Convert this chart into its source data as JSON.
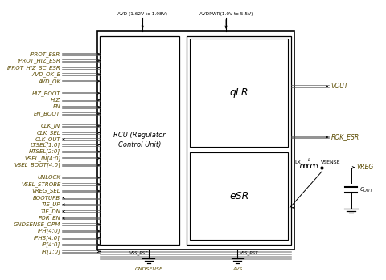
{
  "bg_color": "#ffffff",
  "signal_color": "#404040",
  "box_color": "#000000",
  "text_color": "#5a4a00",
  "avd_label": "AVD (1.62V to 1.98V)",
  "avdpwr_label": "AVDPWR(1.0V to 5.5V)",
  "qlr_label": "qLR",
  "esr_label": "eSR",
  "rcu_label": "RCU (Regulator\nControl Unit)",
  "lx_label": "LX",
  "l_label": "L",
  "vsense_label": "VSENSE",
  "vreg_label": "VREG",
  "vout_label": "VOUT",
  "rok_label": "ROK_ESR",
  "cout_label": "C_{OUT}",
  "vss_pst_left": "VSS_PST",
  "vss_pst_right": "VSS_PST",
  "gndsense_label": "GNDSENSE",
  "avs_label": "AVS",
  "left_signals_in": [
    "IPROT_ESR",
    "IPROT_HIZ_ESR",
    "IPROT_HIZ_SC_ESR",
    "AVD_OK_B",
    "AVD_OK",
    "",
    "HIZ_BOOT",
    "HIZ",
    "EN",
    "EN_BOOT",
    "",
    "CLK_IN",
    "CLK_SEL",
    "",
    "LTSEL[1:0]",
    "HTSEL[2:0]",
    "VSEL_IN[4:0]",
    "VSEL_BOOT[4:0]",
    "",
    "UNLOCK",
    "VSEL_STROBE",
    "VREG_SEL"
  ],
  "left_signals_out": [
    "CLK_OUT",
    "BOOTUPB",
    "TIE_UP",
    "TIE_DN",
    "POR_EN"
  ],
  "bottom_signals_in": [
    "GNDSENSE_OPM",
    "IPH[4:0]",
    "IPHS[4:0]",
    "IP[4:0]",
    "IR[1:0]"
  ],
  "font_size": 5.0
}
